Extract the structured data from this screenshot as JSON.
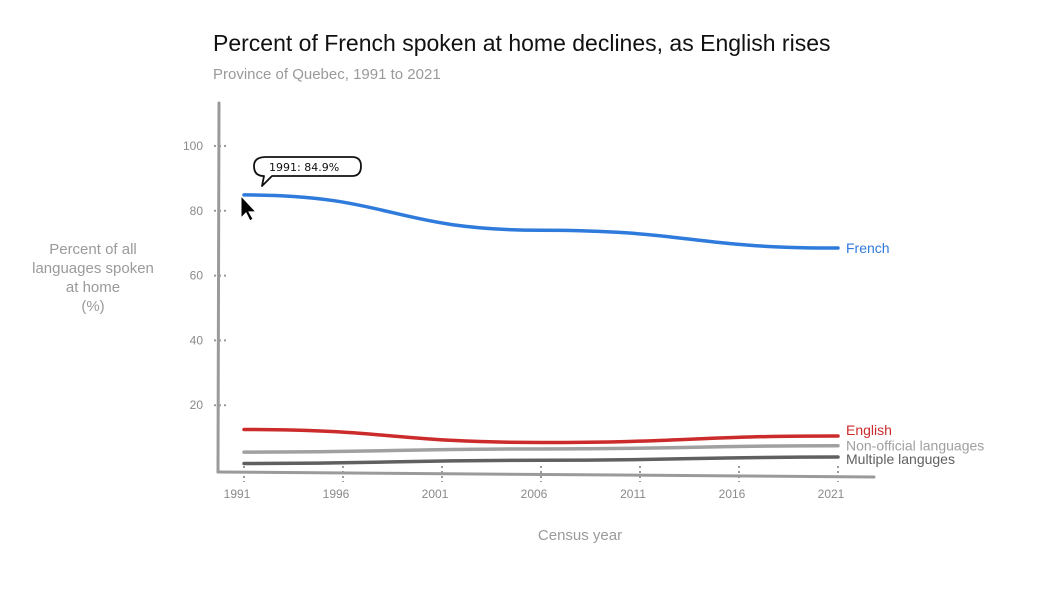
{
  "chart_data": {
    "type": "line",
    "title": "Percent of French spoken at home declines, as English rises",
    "subtitle": "Province of Quebec, 1991 to 2021",
    "xlabel": "Census year",
    "ylabel": "Percent of all\nlanguages spoken\nat home\n(%)",
    "xlim": [
      1991,
      2021
    ],
    "ylim": [
      0,
      105
    ],
    "x_ticks": [
      1991,
      1996,
      2001,
      2006,
      2011,
      2016,
      2021
    ],
    "y_ticks": [
      20,
      40,
      60,
      80,
      100
    ],
    "x": [
      1991,
      2006,
      2021
    ],
    "series": [
      {
        "name": "French",
        "color": "#2e7bdc",
        "values": [
          84.9,
          74.0,
          68.5
        ]
      },
      {
        "name": "English",
        "color": "#cc2b2b",
        "values": [
          12.5,
          8.5,
          10.5
        ]
      },
      {
        "name": "Non-official languages",
        "color": "#a0a0a0",
        "values": [
          5.5,
          6.5,
          7.5
        ]
      },
      {
        "name": "Multiple languges",
        "color": "#606060",
        "values": [
          2.0,
          3.0,
          4.0
        ]
      }
    ],
    "tooltip": {
      "text": "1991: 84.9%",
      "x": 1991,
      "y": 84.9
    },
    "grid": false
  }
}
